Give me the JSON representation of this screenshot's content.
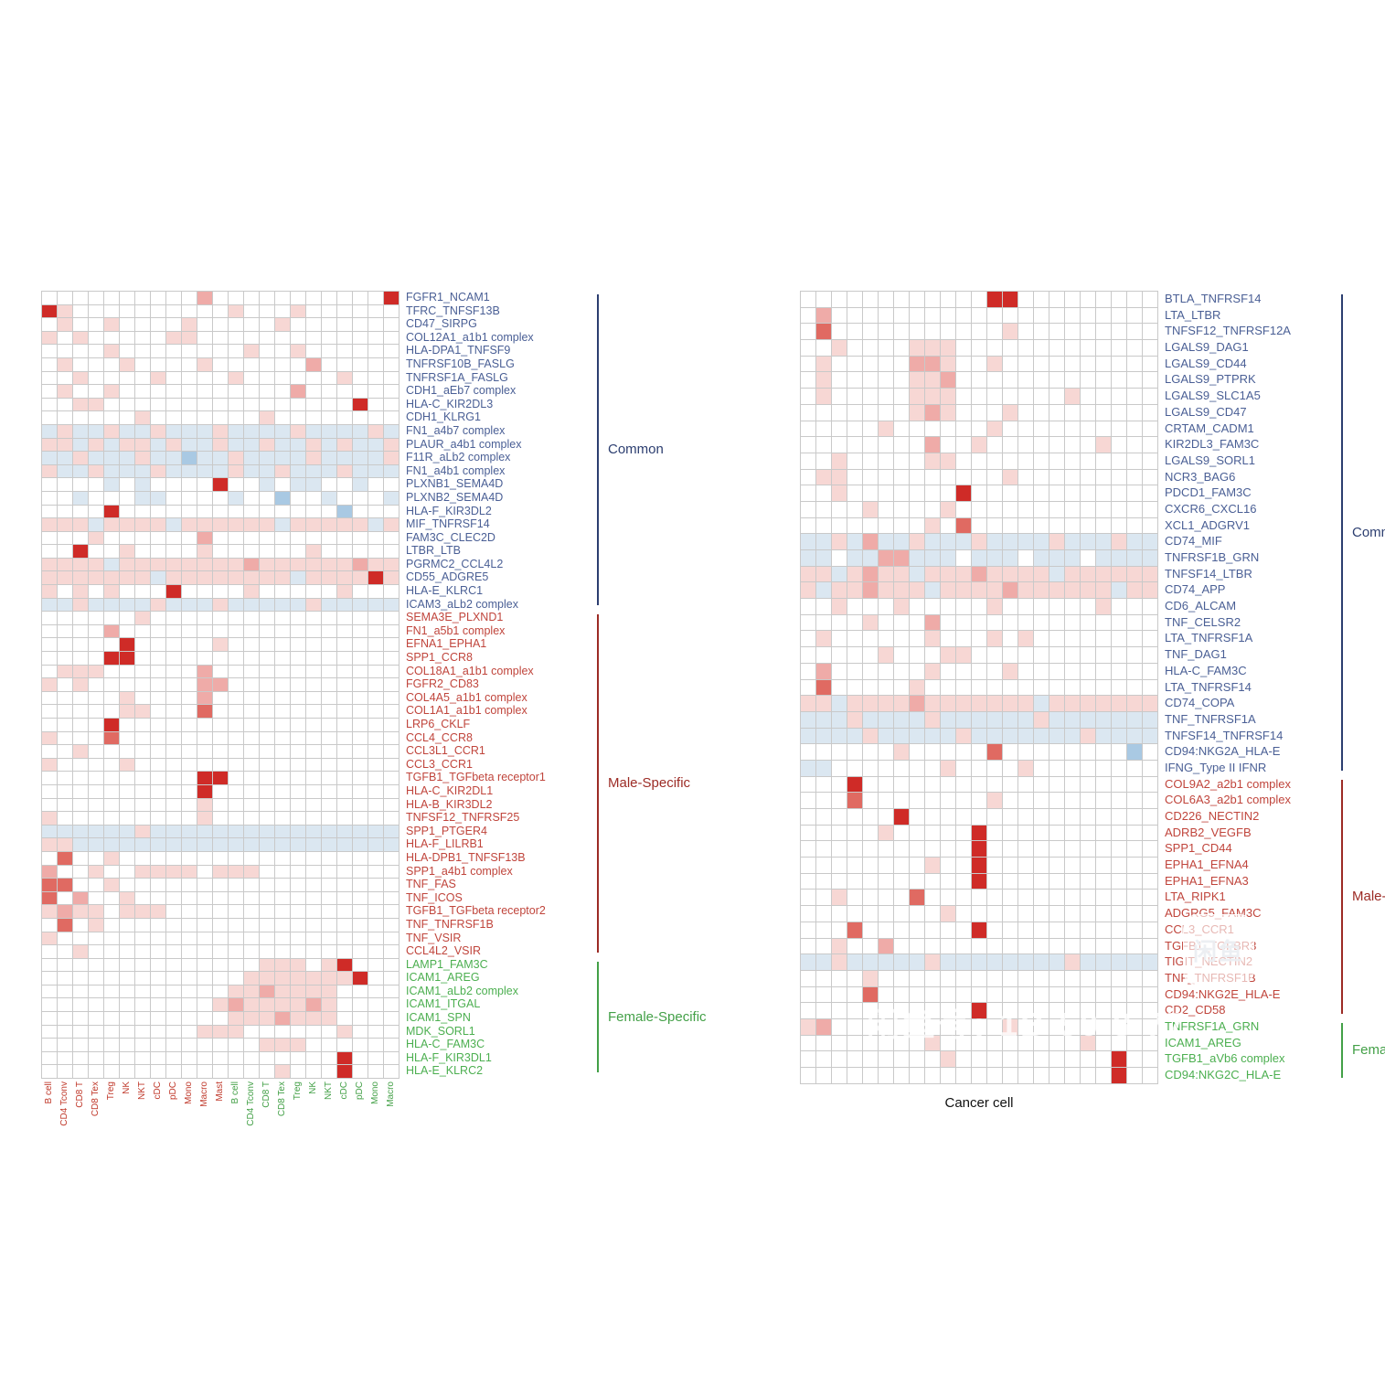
{
  "figure": {
    "background": "#ffffff"
  },
  "watermark": {
    "logo_text": "闲鱼",
    "text": "闲鱼号: 1B 50 8 77"
  },
  "chart_data": [
    {
      "type": "heatmap",
      "panel": "left",
      "cell_palette": {
        ".": "#ffffff",
        "b": "#dbe7f1",
        "B": "#a9c9e3",
        "p": "#f7d7d4",
        "P": "#efaba8",
        "r": "#e06a62",
        "R": "#cf2b27"
      },
      "groups": [
        {
          "label": "Common",
          "text": "#4a5f95",
          "line": "#2c3e70"
        },
        {
          "label": "Male-Specific",
          "text": "#c0453c",
          "line": "#9c2b25"
        },
        {
          "label": "Female-Specific",
          "text": "#4caf50",
          "line": "#43a047"
        }
      ],
      "columns": [
        {
          "label": "B cell",
          "color": "#c0392b"
        },
        {
          "label": "CD4 Tconv",
          "color": "#c0392b"
        },
        {
          "label": "CD8 T",
          "color": "#c0392b"
        },
        {
          "label": "CD8 Tex",
          "color": "#c0392b"
        },
        {
          "label": "Treg",
          "color": "#c0392b"
        },
        {
          "label": "NK",
          "color": "#c0392b"
        },
        {
          "label": "NKT",
          "color": "#c0392b"
        },
        {
          "label": "cDC",
          "color": "#c0392b"
        },
        {
          "label": "pDC",
          "color": "#c0392b"
        },
        {
          "label": "Mono",
          "color": "#c0392b"
        },
        {
          "label": "Macro",
          "color": "#c0392b"
        },
        {
          "label": "Mast",
          "color": "#c0392b"
        },
        {
          "label": "B cell",
          "color": "#43a047"
        },
        {
          "label": "CD4 Tconv",
          "color": "#43a047"
        },
        {
          "label": "CD8 T",
          "color": "#43a047"
        },
        {
          "label": "CD8 Tex",
          "color": "#43a047"
        },
        {
          "label": "Treg",
          "color": "#43a047"
        },
        {
          "label": "NK",
          "color": "#43a047"
        },
        {
          "label": "NKT",
          "color": "#43a047"
        },
        {
          "label": "cDC",
          "color": "#43a047"
        },
        {
          "label": "pDC",
          "color": "#43a047"
        },
        {
          "label": "Mono",
          "color": "#43a047"
        },
        {
          "label": "Macro",
          "color": "#43a047"
        }
      ],
      "rows": [
        {
          "l": "FGFR1_NCAM1",
          "g": 0,
          "c": "..........P...........R"
        },
        {
          "l": "TFRC_TNFSF13B",
          "g": 0,
          "c": "Rp..........p...p......"
        },
        {
          "l": "CD47_SIRPG",
          "g": 0,
          "c": ".p..p....p.....p......."
        },
        {
          "l": "COL12A1_a1b1 complex",
          "g": 0,
          "c": "p.p.....pp............."
        },
        {
          "l": "HLA-DPA1_TNFSF9",
          "g": 0,
          "c": "....p........p..p......"
        },
        {
          "l": "TNFRSF10B_FASLG",
          "g": 0,
          "c": ".p...p....p......P....."
        },
        {
          "l": "TNFRSF1A_FASLG",
          "g": 0,
          "c": "..p....p....p......p..."
        },
        {
          "l": "CDH1_aEb7 complex",
          "g": 0,
          "c": ".p..p...........P......"
        },
        {
          "l": "HLA-C_KIR2DL3",
          "g": 0,
          "c": "..pp................R.."
        },
        {
          "l": "CDH1_KLRG1",
          "g": 0,
          "c": "......p.......p........"
        },
        {
          "l": "FN1_a4b7 complex",
          "g": 0,
          "c": "bpbbpbbpbbbpbbbbpbbbbpb"
        },
        {
          "l": "PLAUR_a4b1 complex",
          "g": 0,
          "c": "ppbpbppbpbbpbbpbbpbpbbp"
        },
        {
          "l": "F11R_aLb2 complex",
          "g": 0,
          "c": "bbpbbbpbbBbbpbbbbpbbbbp"
        },
        {
          "l": "FN1_a4b1 complex",
          "g": 0,
          "c": "pbbpbbbpbbbbpbbpbbbpbbb"
        },
        {
          "l": "PLXNB1_SEMA4D",
          "g": 0,
          "c": "....b.b....R..b.bb..b.."
        },
        {
          "l": "PLXNB2_SEMA4D",
          "g": 0,
          "c": "..b...bb....b..B..b...b"
        },
        {
          "l": "HLA-F_KIR3DL2",
          "g": 0,
          "c": "....R..............B..."
        },
        {
          "l": "MIF_TNFRSF14",
          "g": 0,
          "c": "pppbppppbppppppbpppppbp"
        },
        {
          "l": "FAM3C_CLEC2D",
          "g": 0,
          "c": "...p......P............"
        },
        {
          "l": "LTBR_LTB",
          "g": 0,
          "c": "..R..p....p......p....."
        },
        {
          "l": "PGRMC2_CCL4L2",
          "g": 0,
          "c": "ppppbppppppppPppppppPpp"
        },
        {
          "l": "CD55_ADGRE5",
          "g": 0,
          "c": "pppppppbppppppppbppppRp"
        },
        {
          "l": "HLA-E_KLRC1",
          "g": 0,
          "c": "p.p.p...R....p.....p..."
        },
        {
          "l": "ICAM3_aLb2 complex",
          "g": 0,
          "c": "bbpbbbbpbbbpbbbbbpbbbbb"
        },
        {
          "l": "SEMA3E_PLXND1",
          "g": 1,
          "c": "......p................"
        },
        {
          "l": "FN1_a5b1 complex",
          "g": 1,
          "c": "....P.................."
        },
        {
          "l": "EFNA1_EPHA1",
          "g": 1,
          "c": ".....R.....p..........."
        },
        {
          "l": "SPP1_CCR8",
          "g": 1,
          "c": "....RR................."
        },
        {
          "l": "COL18A1_a1b1 complex",
          "g": 1,
          "c": ".ppp......P............"
        },
        {
          "l": "FGFR2_CD83",
          "g": 1,
          "c": "p.p.......PP..........."
        },
        {
          "l": "COL4A5_a1b1 complex",
          "g": 1,
          "c": ".....p....P............"
        },
        {
          "l": "COL1A1_a1b1 complex",
          "g": 1,
          "c": ".....pp...r............"
        },
        {
          "l": "LRP6_CKLF",
          "g": 1,
          "c": "....R.................."
        },
        {
          "l": "CCL4_CCR8",
          "g": 1,
          "c": "p...r.................."
        },
        {
          "l": "CCL3L1_CCR1",
          "g": 1,
          "c": "..p...................."
        },
        {
          "l": "CCL3_CCR1",
          "g": 1,
          "c": "p....p................."
        },
        {
          "l": "TGFB1_TGFbeta receptor1",
          "g": 1,
          "c": "..........RR..........."
        },
        {
          "l": "HLA-C_KIR2DL1",
          "g": 1,
          "c": "..........R............"
        },
        {
          "l": "HLA-B_KIR3DL2",
          "g": 1,
          "c": "..........p............"
        },
        {
          "l": "TNFSF12_TNFRSF25",
          "g": 1,
          "c": "p.........p............"
        },
        {
          "l": "SPP1_PTGER4",
          "g": 1,
          "c": "bbbbbbpbbbbbbbbbbbbbbbb"
        },
        {
          "l": "HLA-F_LILRB1",
          "g": 1,
          "c": "ppbbbbbbbbbbbbbbbbbbbbb"
        },
        {
          "l": "HLA-DPB1_TNFSF13B",
          "g": 1,
          "c": ".r..p.................."
        },
        {
          "l": "SPP1_a4b1 complex",
          "g": 1,
          "c": "P..p..pppp.ppp........."
        },
        {
          "l": "TNF_FAS",
          "g": 1,
          "c": "rr..p.................."
        },
        {
          "l": "TNF_ICOS",
          "g": 1,
          "c": "r.P..p................."
        },
        {
          "l": "TGFB1_TGFbeta receptor2",
          "g": 1,
          "c": "pPpp.ppp..............."
        },
        {
          "l": "TNF_TNFRSF1B",
          "g": 1,
          "c": ".r.p..................."
        },
        {
          "l": "TNF_VSIR",
          "g": 1,
          "c": "p......................"
        },
        {
          "l": "CCL4L2_VSIR",
          "g": 1,
          "c": "..p...................."
        },
        {
          "l": "LAMP1_FAM3C",
          "g": 2,
          "c": "..............ppp.pR..."
        },
        {
          "l": "ICAM1_AREG",
          "g": 2,
          "c": ".............pppppppR.."
        },
        {
          "l": "ICAM1_aLb2 complex",
          "g": 2,
          "c": "............ppPpppp...."
        },
        {
          "l": "ICAM1_ITGAL",
          "g": 2,
          "c": "...........pPppppPp...."
        },
        {
          "l": "ICAM1_SPN",
          "g": 2,
          "c": "............pppPppp...."
        },
        {
          "l": "MDK_SORL1",
          "g": 2,
          "c": "..........ppp......p..."
        },
        {
          "l": "HLA-C_FAM3C",
          "g": 2,
          "c": "..............ppp......"
        },
        {
          "l": "HLA-F_KIR3DL1",
          "g": 2,
          "c": "...................R..."
        },
        {
          "l": "HLA-E_KLRC2",
          "g": 2,
          "c": "...............p...R..."
        }
      ]
    },
    {
      "type": "heatmap",
      "panel": "right",
      "n_columns": 23,
      "xlabel": "Cancer cell",
      "cell_palette": {
        ".": "#ffffff",
        "b": "#dbe7f1",
        "B": "#a9c9e3",
        "p": "#f7d7d4",
        "P": "#efaba8",
        "r": "#e06a62",
        "R": "#cf2b27"
      },
      "groups": [
        {
          "label": "Common",
          "text": "#4a5f95",
          "line": "#2c3e70"
        },
        {
          "label": "Male-Specific",
          "text": "#c0453c",
          "line": "#9c2b25"
        },
        {
          "label": "Female-Specific",
          "text": "#4caf50",
          "line": "#43a047"
        }
      ],
      "rows": [
        {
          "l": "BTLA_TNFRSF14",
          "g": 0,
          "c": "............RR........."
        },
        {
          "l": "LTA_LTBR",
          "g": 0,
          "c": ".P....................."
        },
        {
          "l": "TNFSF12_TNFRSF12A",
          "g": 0,
          "c": ".r...........p........."
        },
        {
          "l": "LGALS9_DAG1",
          "g": 0,
          "c": "..p....ppp............."
        },
        {
          "l": "LGALS9_CD44",
          "g": 0,
          "c": ".p.....PPp..p.........."
        },
        {
          "l": "LGALS9_PTPRK",
          "g": 0,
          "c": ".p.....ppP............."
        },
        {
          "l": "LGALS9_SLC1A5",
          "g": 0,
          "c": ".p.....ppp.......p....."
        },
        {
          "l": "LGALS9_CD47",
          "g": 0,
          "c": ".......pPp...p........."
        },
        {
          "l": "CRTAM_CADM1",
          "g": 0,
          "c": ".....p......p.........."
        },
        {
          "l": "KIR2DL3_FAM3C",
          "g": 0,
          "c": "........P..p.......p..."
        },
        {
          "l": "LGALS9_SORL1",
          "g": 0,
          "c": "..p.....pp............."
        },
        {
          "l": "NCR3_BAG6",
          "g": 0,
          "c": ".pp..........p........."
        },
        {
          "l": "PDCD1_FAM3C",
          "g": 0,
          "c": "..p.......R............"
        },
        {
          "l": "CXCR6_CXCL16",
          "g": 0,
          "c": "....p....p............."
        },
        {
          "l": "XCL1_ADGRV1",
          "g": 0,
          "c": "........p.r............"
        },
        {
          "l": "CD74_MIF",
          "g": 0,
          "c": "bbpbPbbpbbbpbbbbpbbbpbb"
        },
        {
          "l": "TNFRSF1B_GRN",
          "g": 0,
          "c": "bb.bbPPbbb.bbb.bbb.bbbb"
        },
        {
          "l": "TNFSF14_LTBR",
          "g": 0,
          "c": "ppbpPppbpppPppppbpppppp"
        },
        {
          "l": "CD74_APP",
          "g": 0,
          "c": "pbppPpppbppppPppppppbpp"
        },
        {
          "l": "CD6_ALCAM",
          "g": 0,
          "c": "..p...p.....p......p..."
        },
        {
          "l": "TNF_CELSR2",
          "g": 0,
          "c": "....p...P.............."
        },
        {
          "l": "LTA_TNFRSF1A",
          "g": 0,
          "c": ".p......p...p.p........"
        },
        {
          "l": "TNF_DAG1",
          "g": 0,
          "c": ".....p...pp............"
        },
        {
          "l": "HLA-C_FAM3C",
          "g": 0,
          "c": ".P......p....p........."
        },
        {
          "l": "LTA_TNFRSF14",
          "g": 0,
          "c": ".r.....p..............."
        },
        {
          "l": "CD74_COPA",
          "g": 0,
          "c": "ppbppppPpppppppbppppppp"
        },
        {
          "l": "TNF_TNFRSF1A",
          "g": 0,
          "c": "bbbpbbbbpbbbbbbpbbbbbbb"
        },
        {
          "l": "TNFSF14_TNFRSF14",
          "g": 0,
          "c": "bbbbpbbbbbpbbbbbbbpbbbb"
        },
        {
          "l": "CD94:NKG2A_HLA-E",
          "g": 0,
          "c": "......p.....r........B."
        },
        {
          "l": "IFNG_Type II IFNR",
          "g": 0,
          "c": "bb.......p....p........"
        },
        {
          "l": "COL9A2_a2b1 complex",
          "g": 1,
          "c": "...R..................."
        },
        {
          "l": "COL6A3_a2b1 complex",
          "g": 1,
          "c": "...r........p.........."
        },
        {
          "l": "CD226_NECTIN2",
          "g": 1,
          "c": "......R................"
        },
        {
          "l": "ADRB2_VEGFB",
          "g": 1,
          "c": ".....p.....R..........."
        },
        {
          "l": "SPP1_CD44",
          "g": 1,
          "c": "...........R..........."
        },
        {
          "l": "EPHA1_EFNA4",
          "g": 1,
          "c": "........p..R..........."
        },
        {
          "l": "EPHA1_EFNA3",
          "g": 1,
          "c": "...........R..........."
        },
        {
          "l": "LTA_RIPK1",
          "g": 1,
          "c": "..p....r..............."
        },
        {
          "l": "ADGRG5_FAM3C",
          "g": 1,
          "c": ".........p............."
        },
        {
          "l": "CCL3_CCR1",
          "g": 1,
          "c": "...r.......R..........."
        },
        {
          "l": "TGFB1_TGFBR3",
          "g": 1,
          "c": "..p..P................."
        },
        {
          "l": "TIGIT_NECTIN2",
          "g": 1,
          "c": "bbpbbbbbpbbbbbbbbpbbbbb"
        },
        {
          "l": "TNF_TNFRSF1B",
          "g": 1,
          "c": "....p.................."
        },
        {
          "l": "CD94:NKG2E_HLA-E",
          "g": 1,
          "c": "....r.................."
        },
        {
          "l": "CD2_CD58",
          "g": 1,
          "c": "...........R..........."
        },
        {
          "l": "TNFRSF1A_GRN",
          "g": 2,
          "c": "pP...........p........."
        },
        {
          "l": "ICAM1_AREG",
          "g": 2,
          "c": "........p.........p...."
        },
        {
          "l": "TGFB1_aVb6 complex",
          "g": 2,
          "c": ".........p..........R.."
        },
        {
          "l": "CD94:NKG2C_HLA-E",
          "g": 2,
          "c": "....................R.."
        }
      ]
    }
  ]
}
